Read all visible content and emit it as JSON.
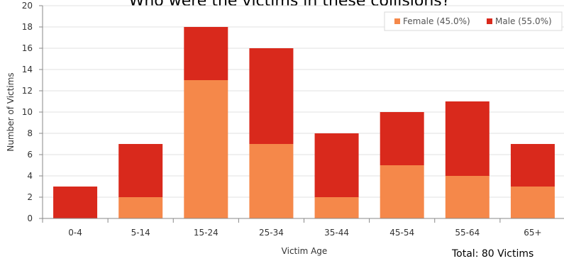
{
  "chart_data": {
    "type": "bar",
    "stacked": true,
    "title": "Who were the victims in these collisions?",
    "xlabel": "Victim Age",
    "ylabel": "Number of Victims",
    "ylim": [
      0,
      20
    ],
    "yticks": [
      0,
      2,
      4,
      6,
      8,
      10,
      12,
      14,
      16,
      18,
      20
    ],
    "categories": [
      "0-4",
      "5-14",
      "15-24",
      "25-34",
      "35-44",
      "45-54",
      "55-64",
      "65+"
    ],
    "series": [
      {
        "name": "Female (45.0%)",
        "color": "#f5884a",
        "values": [
          0,
          2,
          13,
          7,
          2,
          5,
          4,
          3
        ]
      },
      {
        "name": "Male (55.0%)",
        "color": "#d9291c",
        "values": [
          3,
          5,
          5,
          9,
          6,
          5,
          7,
          4
        ]
      }
    ],
    "grid": true,
    "legend_position": "top-right",
    "footnote": "Total: 80 Victims"
  }
}
